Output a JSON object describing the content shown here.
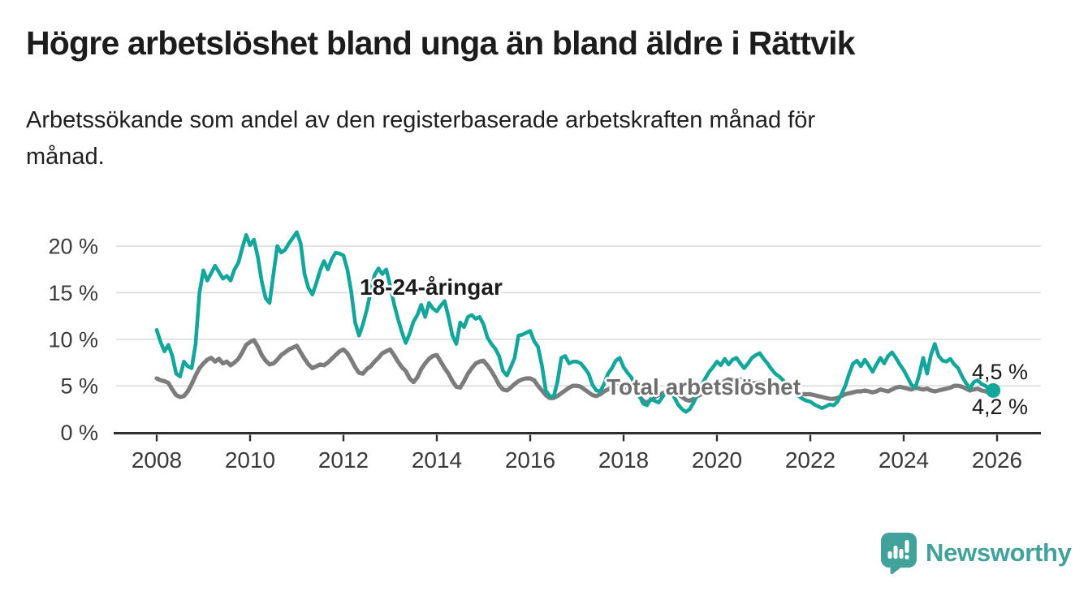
{
  "header": {
    "title": "Högre arbetslöshet bland unga än bland äldre i Rättvik",
    "subtitle": "Arbetssökande som andel av den registerbaserade arbetskraften månad för månad."
  },
  "chart_data": {
    "type": "line",
    "unit": "%",
    "grid": "horizontal",
    "legend_position": "inline-labels",
    "x_start_year": 2008,
    "points_per_year": 12,
    "ylim": [
      0,
      22
    ],
    "y_ticks": [
      0,
      5,
      10,
      15,
      20
    ],
    "y_tick_labels": [
      "0 %",
      "5 %",
      "10 %",
      "15 %",
      "20 %"
    ],
    "x_ticks": [
      2008,
      2010,
      2012,
      2014,
      2016,
      2018,
      2020,
      2022,
      2024,
      2026
    ],
    "x_tick_labels": [
      "2008",
      "2010",
      "2012",
      "2014",
      "2016",
      "2018",
      "2020",
      "2022",
      "2024",
      "2026"
    ],
    "colors": {
      "youth": "#13a69b",
      "total": "#7c7c7c",
      "grid": "#dcdcdc",
      "axis": "#2f2f2f"
    },
    "series": [
      {
        "key": "youth",
        "name": "18-24-åringar",
        "label_text": "18-24-åringar",
        "color": "#13a69b",
        "end_label": "4,5 %",
        "end_value": 4.5,
        "values": [
          11.0,
          9.7,
          8.7,
          9.4,
          8.2,
          6.3,
          6.0,
          7.6,
          7.1,
          6.9,
          9.5,
          15.0,
          17.4,
          16.3,
          17.1,
          17.9,
          17.2,
          16.5,
          16.8,
          16.3,
          17.5,
          18.2,
          19.8,
          21.2,
          20.1,
          20.7,
          18.8,
          16.2,
          14.4,
          13.9,
          17.0,
          20.0,
          19.3,
          19.6,
          20.3,
          20.9,
          21.5,
          20.3,
          17.0,
          15.5,
          14.8,
          16.0,
          17.4,
          18.4,
          17.5,
          18.6,
          19.3,
          19.2,
          19.0,
          17.5,
          15.1,
          11.8,
          10.4,
          11.6,
          13.2,
          15.1,
          16.9,
          17.6,
          17.0,
          17.5,
          15.8,
          13.8,
          12.2,
          10.8,
          9.6,
          10.6,
          11.9,
          12.6,
          13.7,
          12.4,
          13.9,
          13.3,
          13.0,
          13.6,
          14.1,
          12.4,
          10.4,
          9.5,
          11.8,
          11.3,
          12.4,
          12.6,
          12.2,
          12.4,
          11.6,
          10.2,
          9.5,
          9.0,
          8.2,
          6.6,
          6.1,
          7.0,
          8.0,
          10.4,
          10.5,
          10.7,
          10.9,
          9.8,
          9.2,
          7.2,
          4.5,
          3.9,
          3.8,
          5.4,
          8.0,
          8.2,
          7.4,
          7.6,
          7.6,
          7.4,
          6.9,
          6.3,
          5.1,
          4.5,
          4.4,
          5.2,
          6.3,
          6.9,
          7.7,
          8.0,
          7.0,
          6.4,
          5.9,
          5.0,
          4.0,
          3.1,
          2.9,
          3.6,
          3.4,
          3.2,
          3.8,
          4.4,
          4.4,
          3.8,
          3.0,
          2.5,
          2.2,
          2.5,
          3.2,
          4.1,
          5.0,
          5.8,
          6.5,
          7.0,
          7.6,
          7.2,
          7.9,
          7.3,
          7.8,
          8.0,
          7.4,
          6.9,
          7.4,
          8.0,
          8.3,
          8.5,
          7.9,
          7.4,
          6.8,
          6.3,
          6.0,
          5.6,
          5.1,
          4.7,
          4.3,
          3.9,
          3.6,
          3.4,
          3.3,
          3.0,
          2.8,
          2.6,
          2.8,
          3.0,
          2.9,
          3.3,
          4.1,
          5.0,
          6.3,
          7.4,
          7.7,
          7.1,
          7.8,
          7.2,
          6.5,
          7.3,
          8.0,
          7.4,
          8.2,
          8.6,
          8.0,
          7.3,
          6.7,
          5.9,
          5.1,
          4.8,
          6.2,
          8.0,
          6.3,
          8.3,
          9.5,
          8.2,
          7.7,
          7.6,
          7.9,
          7.3,
          6.9,
          6.0,
          5.3,
          4.7,
          5.4,
          5.6,
          5.2,
          5.0,
          4.6,
          4.5
        ]
      },
      {
        "key": "total",
        "name": "Total arbetslöshet",
        "label_text": "Total arbetslöshet",
        "color": "#7c7c7c",
        "end_label": "4,2 %",
        "end_value": 4.2,
        "values": [
          5.8,
          5.6,
          5.5,
          5.3,
          4.6,
          4.0,
          3.8,
          3.9,
          4.4,
          5.2,
          6.1,
          6.9,
          7.4,
          7.8,
          8.0,
          7.6,
          7.9,
          7.4,
          7.6,
          7.2,
          7.5,
          7.9,
          8.6,
          9.4,
          9.7,
          9.9,
          9.2,
          8.3,
          7.7,
          7.3,
          7.4,
          7.8,
          8.3,
          8.6,
          8.9,
          9.1,
          9.3,
          8.6,
          7.9,
          7.3,
          6.9,
          7.1,
          7.3,
          7.2,
          7.5,
          7.9,
          8.3,
          8.7,
          8.9,
          8.5,
          7.8,
          7.0,
          6.4,
          6.3,
          6.8,
          7.1,
          7.6,
          8.0,
          8.5,
          8.7,
          8.9,
          8.3,
          7.6,
          7.0,
          6.6,
          5.8,
          5.4,
          5.9,
          6.8,
          7.4,
          7.9,
          8.2,
          8.3,
          7.6,
          6.9,
          6.3,
          5.5,
          4.9,
          4.8,
          5.5,
          6.3,
          6.9,
          7.4,
          7.6,
          7.7,
          7.2,
          6.6,
          5.9,
          5.1,
          4.6,
          4.5,
          4.8,
          5.2,
          5.5,
          5.7,
          5.8,
          5.8,
          5.6,
          5.0,
          4.5,
          4.0,
          3.7,
          3.7,
          3.9,
          4.2,
          4.5,
          4.8,
          5.0,
          5.0,
          4.9,
          4.6,
          4.3,
          4.0,
          3.9,
          4.1,
          4.4,
          4.6,
          4.8,
          5.0,
          5.1,
          5.0,
          4.8,
          4.5,
          4.2,
          3.9,
          3.4,
          3.2,
          3.5,
          3.8,
          4.0,
          4.2,
          4.4,
          4.4,
          4.3,
          4.1,
          3.8,
          3.5,
          3.4,
          3.6,
          3.9,
          4.1,
          4.3,
          4.5,
          4.7,
          4.9,
          5.1,
          5.5,
          5.7,
          5.6,
          5.6,
          5.7,
          5.6,
          5.4,
          5.3,
          5.3,
          5.4,
          5.3,
          5.2,
          5.0,
          4.8,
          4.7,
          4.6,
          4.5,
          4.4,
          4.3,
          4.2,
          4.1,
          4.1,
          4.1,
          4.0,
          3.9,
          3.8,
          3.7,
          3.6,
          3.6,
          3.7,
          3.9,
          4.1,
          4.2,
          4.3,
          4.4,
          4.4,
          4.5,
          4.4,
          4.3,
          4.4,
          4.6,
          4.5,
          4.4,
          4.6,
          4.8,
          4.9,
          4.8,
          4.7,
          4.6,
          4.8,
          4.7,
          4.6,
          4.7,
          4.5,
          4.4,
          4.5,
          4.6,
          4.7,
          4.8,
          5.0,
          5.0,
          4.9,
          4.7,
          4.5,
          4.6,
          4.7,
          4.5,
          4.4,
          4.3,
          4.2
        ]
      }
    ]
  },
  "footer": {
    "brand": "Newsworthy",
    "brand_color": "#41a19b"
  }
}
